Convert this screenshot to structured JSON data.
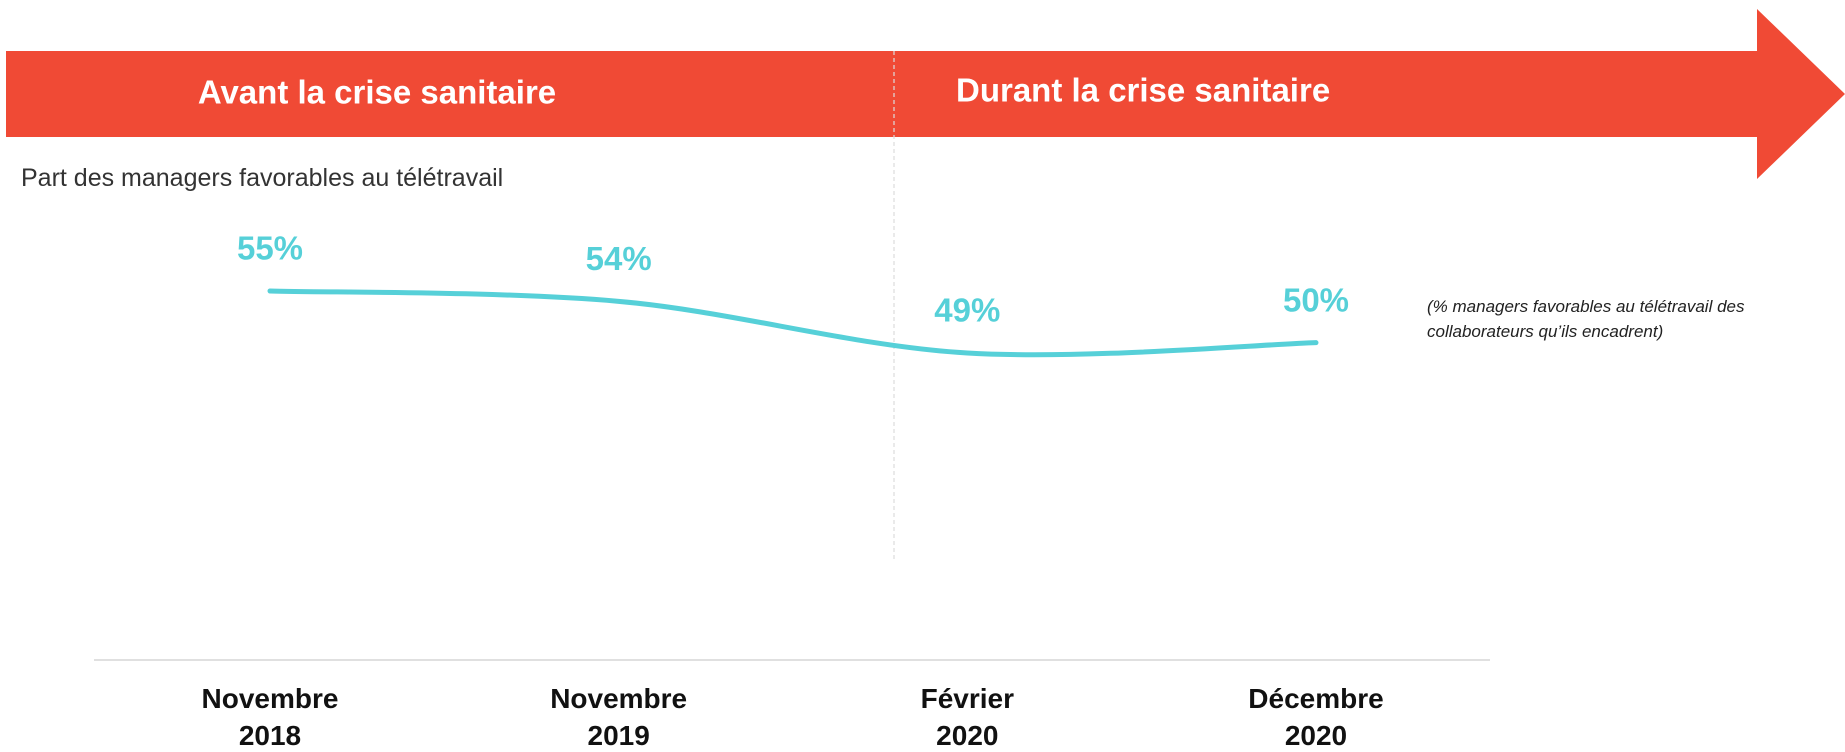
{
  "chart_data": {
    "type": "line",
    "title": "Part des  managers favorables au télétravail",
    "annotations": [
      "Avant la crise sanitaire",
      "Durant la crise sanitaire",
      "(%  managers favorables au télétravail des collaborateurs qu’ils encadrent)"
    ],
    "categories": [
      "Novembre 2018",
      "Novembre 2019",
      "Février 2020",
      "Décembre 2020"
    ],
    "series": [
      {
        "name": null,
        "color": "#56d0d8",
        "values": [
          55,
          54,
          49,
          50
        ],
        "value_labels": [
          "55%",
          "54%",
          "49%",
          "50%"
        ]
      }
    ]
  }
}
